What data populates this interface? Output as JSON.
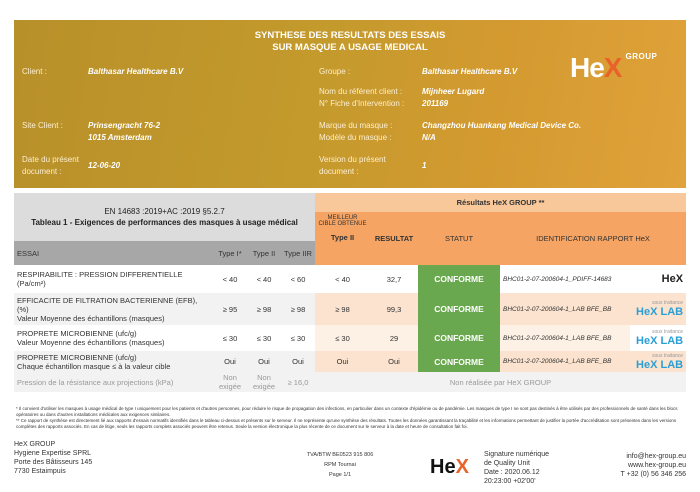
{
  "header": {
    "title1": "SYNTHESE DES RESULTATS DES ESSAIS",
    "title2": "SUR MASQUE A USAGE MEDICAL",
    "client_label": "Client :",
    "client": "Balthasar Healthcare B.V",
    "groupe_label": "Groupe :",
    "groupe": "Balthasar Healthcare B.V",
    "referent_label": "Nom du référent client :",
    "referent": "Mijnheer Lugard",
    "fiche_label": "N° Fiche d'Intervention :",
    "fiche": "201169",
    "site_label": "Site Client :",
    "site1": "Prinsengracht 76-2",
    "site2": "1015 Amsterdam",
    "marque_label": "Marque du masque :",
    "marque": "Changzhou Huankang Medical Device Co.",
    "modele_label": "Modèle du masque :",
    "modele": "N/A",
    "date_label1": "Date du présent",
    "date_label2": "document :",
    "date": "12-06-20",
    "version_label1": "Version du présent",
    "version_label2": "document :",
    "version": "1",
    "logo": "HeX",
    "logo_group": "GROUP"
  },
  "table": {
    "norm": "EN 14683 :2019+AC :2019 §5.2.7",
    "tableau": "Tableau 1 - Exigences de performances des masques à usage médical",
    "results_title": "Résultats HeX GROUP **",
    "cols": {
      "essai": "ESSAI",
      "t1": "Type I*",
      "t2": "Type II",
      "t3": "Type IIR",
      "best": "MEILLEUR CIBLE OBTENUE",
      "best_type": "Type II",
      "resultat": "RESULTAT",
      "statut": "STATUT",
      "ident": "IDENTIFICATION RAPPORT HeX"
    },
    "rows": [
      {
        "essai1": "RESPIRABILITE : PRESSION DIFFERENTIELLE",
        "essai2": "(Pa/cm²)",
        "essai3": "",
        "t1": "< 40",
        "t2": "< 40",
        "t3": "< 60",
        "best": "< 40",
        "resultat": "32,7",
        "statut": "CONFORME",
        "id": "BHC01-2-07-200604-1_PDIFF-14683",
        "lab": "HeX",
        "sous": ""
      },
      {
        "essai1": "EFFICACITE DE FILTRATION BACTERIENNE (EFB),",
        "essai2": "(%)",
        "essai3": "Valeur Moyenne des échantillons (masques)",
        "t1": "≥ 95",
        "t2": "≥ 98",
        "t3": "≥ 98",
        "best": "≥ 98",
        "resultat": "99,3",
        "statut": "CONFORME",
        "id": "BHC01-2-07-200604-1_LAB BFE_BB",
        "lab": "HeX LAB",
        "sous": "sous traitance"
      },
      {
        "essai1": "PROPRETE MICROBIENNE  (ufc/g)",
        "essai2": "Valeur Moyenne des échantillons (masques)",
        "essai3": "",
        "t1": "≤ 30",
        "t2": "≤ 30",
        "t3": "≤ 30",
        "best": "≤ 30",
        "resultat": "29",
        "statut": "CONFORME",
        "id": "BHC01-2-07-200604-1_LAB BFE_BB",
        "lab": "HeX LAB",
        "sous": "sous traitance"
      },
      {
        "essai1": "PROPRETE MICROBIENNE  (ufc/g)",
        "essai2": "Chaque échantillon masque ≤ à la valeur cible",
        "essai3": "",
        "t1": "Oui",
        "t2": "Oui",
        "t3": "Oui",
        "best": "Oui",
        "resultat": "Oui",
        "statut": "CONFORME",
        "id": "BHC01-2-07-200604-1_LAB BFE_BB",
        "lab": "HeX LAB",
        "sous": "sous traitance"
      }
    ],
    "last": {
      "essai": "Pression de la résistance aux projections (kPa)",
      "t1": "Non exigée",
      "t2": "Non exigée",
      "t3": "≥ 16,0",
      "note": "Non réalisée par HeX GROUP"
    }
  },
  "footnotes": {
    "n1": "* Il convient d'utiliser les masques à usage médical de type I uniquement pour les patients et d'autres personnes, pour réduire le risque de propagation des infections, en particulier dans un contexte d'épidémie ou de pandémie. Les masques de type I ne sont pas destinés à être utilisés par des professionnels de santé dans les blocs opératoires ou dans d'autres installations médicales aux exigences similaires.",
    "n2": "** Ce rapport de synthèse est directement lié aux rapports d'essais normatifs identifiés dans le tableau ci-dessus et présents sur le serveur. Il ne représente qu'une synthèse des résultats. Toutes les données garantissant la traçabilité et les informations permettant de justifier la portée d'accréditation sont présentes dans les versions complètes des rapports associés. En cas de litige, seuls les rapports complets associés peuvent être retenus. Seule la version électronique la plus récente de ce document sur le serveur à la date et heure de consultation fait foi."
  },
  "footer": {
    "company": "HeX GROUP",
    "name": "Hygiene Expertise SPRL",
    "street": "Porte des Bâtisseurs 145",
    "city": "7730 Estaimpuis",
    "tva": "TVA/BTW BE0523 915 806",
    "rpm": "RPM Tournai",
    "page": "Page 1/1",
    "sig1": "Signature numérique",
    "sig2": "de Quality Unit",
    "sig3": "Date : 2020.06.12",
    "sig4": "20:23:00 +02'00'",
    "email": "info@hex-group.eu",
    "web": "www.hex-group.eu",
    "tel": "T +32 (0) 56 346 256"
  },
  "colors": {
    "orange": "#f5a463",
    "green": "#6aa84f",
    "peach": "#fbe3cf",
    "gold": "#c49a2c"
  }
}
